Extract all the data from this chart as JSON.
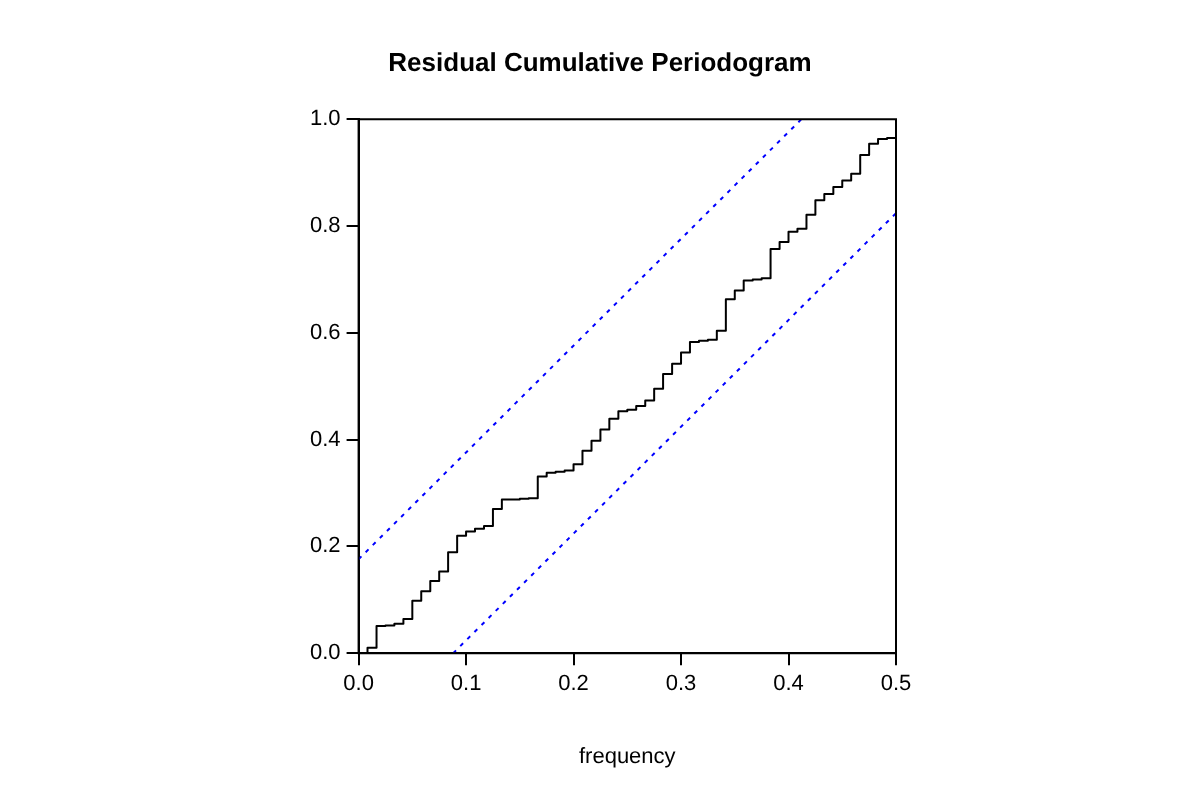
{
  "chart_data": {
    "type": "step",
    "title": "Residual Cumulative Periodogram",
    "xlabel": "frequency",
    "xlim": [
      0,
      0.5
    ],
    "xticks": [
      {
        "value": 0,
        "label": "0.0"
      },
      {
        "value": 0.1,
        "label": "0.1"
      },
      {
        "value": 0.2,
        "label": "0.2"
      },
      {
        "value": 0.3,
        "label": "0.3"
      },
      {
        "value": 0.4,
        "label": "0.4"
      },
      {
        "value": 0.5,
        "label": "0.5"
      }
    ],
    "ylim": [
      0,
      1
    ],
    "yticks": [
      {
        "value": 0,
        "label": "0.0"
      },
      {
        "value": 0.2,
        "label": "0.2"
      },
      {
        "value": 0.4,
        "label": "0.4"
      },
      {
        "value": 0.6,
        "label": "0.6"
      },
      {
        "value": 0.8,
        "label": "0.8"
      },
      {
        "value": 1,
        "label": "1.0"
      }
    ],
    "grid": false,
    "legend": false,
    "marker": "none",
    "series": [
      {
        "type": "step",
        "color": "#000000",
        "line_style": "solid",
        "x": [
          0,
          0.0083,
          0.0167,
          0.025,
          0.0333,
          0.0417,
          0.05,
          0.0583,
          0.0667,
          0.075,
          0.0833,
          0.0917,
          0.1,
          0.1083,
          0.1167,
          0.125,
          0.1333,
          0.1417,
          0.15,
          0.1583,
          0.1667,
          0.175,
          0.1833,
          0.1917,
          0.2,
          0.2083,
          0.2167,
          0.225,
          0.2333,
          0.2417,
          0.25,
          0.2583,
          0.2667,
          0.275,
          0.2833,
          0.2917,
          0.3,
          0.3083,
          0.3167,
          0.325,
          0.3333,
          0.3417,
          0.35,
          0.3583,
          0.3667,
          0.375,
          0.3833,
          0.3917,
          0.4,
          0.4083,
          0.4167,
          0.425,
          0.4333,
          0.4417,
          0.45,
          0.4583,
          0.4667,
          0.475,
          0.4833,
          0.4917,
          0.5
        ],
        "values": [
          0,
          0.01,
          0.051,
          0.052,
          0.055,
          0.064,
          0.098,
          0.116,
          0.135,
          0.153,
          0.189,
          0.22,
          0.228,
          0.233,
          0.238,
          0.27,
          0.288,
          0.288,
          0.289,
          0.29,
          0.331,
          0.338,
          0.34,
          0.342,
          0.354,
          0.379,
          0.398,
          0.419,
          0.439,
          0.453,
          0.456,
          0.463,
          0.473,
          0.495,
          0.523,
          0.542,
          0.563,
          0.583,
          0.585,
          0.587,
          0.604,
          0.663,
          0.679,
          0.698,
          0.7,
          0.702,
          0.757,
          0.77,
          0.789,
          0.795,
          0.821,
          0.848,
          0.86,
          0.873,
          0.885,
          0.898,
          0.933,
          0.954,
          0.963,
          0.965,
          0.967
        ]
      },
      {
        "type": "line",
        "color": "#0000ff",
        "line_style": "dotted",
        "x": [
          0,
          0.412
        ],
        "values": [
          0.176,
          1
        ]
      },
      {
        "type": "line",
        "color": "#0000ff",
        "line_style": "dotted",
        "x": [
          0.088,
          0.5
        ],
        "values": [
          0,
          0.824
        ]
      }
    ]
  }
}
